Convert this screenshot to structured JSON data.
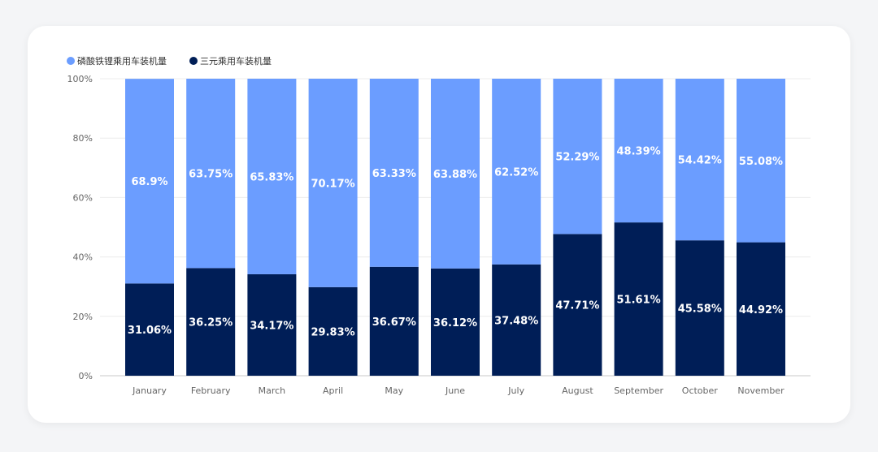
{
  "chart_data": {
    "type": "bar",
    "stacked": true,
    "categories": [
      "January",
      "February",
      "March",
      "April",
      "May",
      "June",
      "July",
      "August",
      "September",
      "October",
      "November"
    ],
    "series": [
      {
        "name": "磷酸铁锂乘用车装机量",
        "color": "#6b9dff",
        "values": [
          68.9,
          63.75,
          65.83,
          70.17,
          63.33,
          63.88,
          62.52,
          52.29,
          48.39,
          54.42,
          55.08
        ],
        "labels": [
          "68.9%",
          "63.75%",
          "65.83%",
          "70.17%",
          "63.33%",
          "63.88%",
          "62.52%",
          "52.29%",
          "48.39%",
          "54.42%",
          "55.08%"
        ]
      },
      {
        "name": "三元乘用车装机量",
        "color": "#001e57",
        "values": [
          31.06,
          36.25,
          34.17,
          29.83,
          36.67,
          36.12,
          37.48,
          47.71,
          51.61,
          45.58,
          44.92
        ],
        "labels": [
          "31.06%",
          "36.25%",
          "34.17%",
          "29.83%",
          "36.67%",
          "36.12%",
          "37.48%",
          "47.71%",
          "51.61%",
          "45.58%",
          "44.92%"
        ]
      }
    ],
    "yticks": [
      "0%",
      "20%",
      "40%",
      "60%",
      "80%",
      "100%"
    ],
    "ylim": [
      0,
      100
    ],
    "grid": true,
    "legend_position": "top-left",
    "title": "",
    "xlabel": "",
    "ylabel": ""
  }
}
